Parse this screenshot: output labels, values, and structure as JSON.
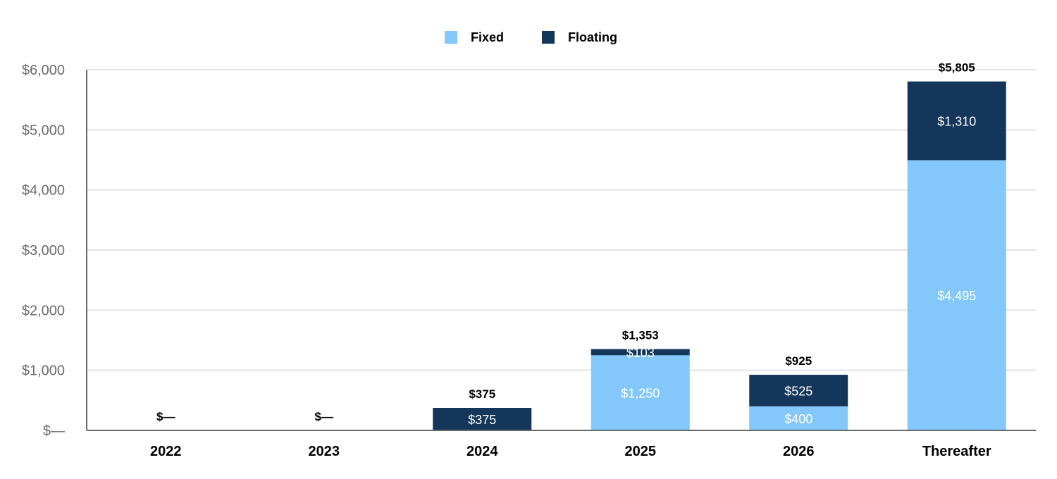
{
  "chart_data": {
    "type": "bar",
    "stacked": true,
    "categories": [
      "2022",
      "2023",
      "2024",
      "2025",
      "2026",
      "Thereafter"
    ],
    "series": [
      {
        "name": "Fixed",
        "color": "#84c8fb",
        "values": [
          0,
          0,
          0,
          1250,
          400,
          4495
        ],
        "labels": [
          "",
          "",
          "",
          "$1,250",
          "$400",
          "$4,495"
        ]
      },
      {
        "name": "Floating",
        "color": "#14365a",
        "values": [
          0,
          0,
          375,
          103,
          525,
          1310
        ],
        "labels": [
          "",
          "",
          "$375",
          "$103",
          "$525",
          "$1,310"
        ]
      }
    ],
    "totals": [
      0,
      0,
      375,
      1353,
      925,
      5805
    ],
    "total_labels": [
      "$—",
      "$—",
      "$375",
      "$1,353",
      "$925",
      "$5,805"
    ],
    "ylim": [
      0,
      6000
    ],
    "yticks": [
      0,
      1000,
      2000,
      3000,
      4000,
      5000,
      6000
    ],
    "ytick_labels": [
      "$—",
      "$1,000",
      "$2,000",
      "$3,000",
      "$4,000",
      "$5,000",
      "$6,000"
    ],
    "grid": true,
    "legend": "top-center"
  }
}
